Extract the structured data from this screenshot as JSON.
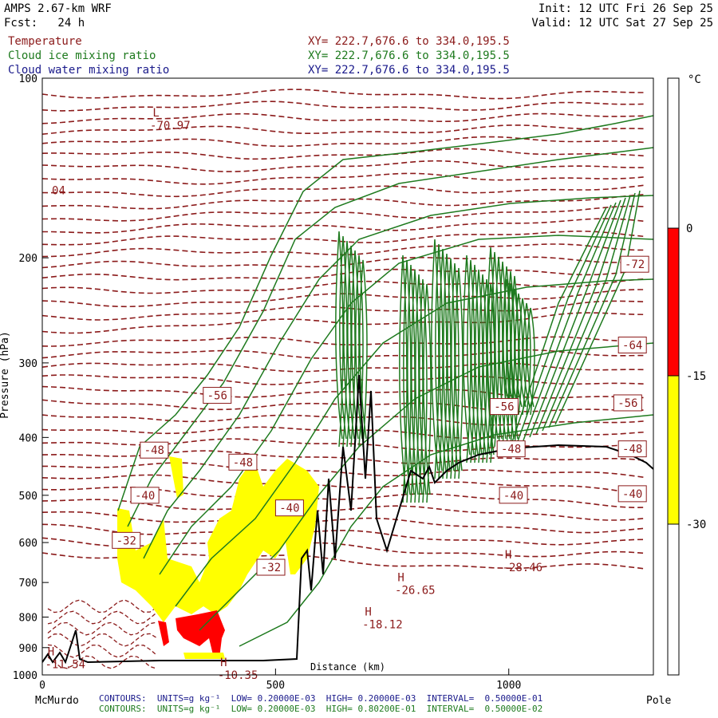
{
  "header": {
    "model": "AMPS 2.67-km WRF",
    "fcst": "Fcst:   24 h",
    "init": "Init: 12 UTC Fri 26 Sep 25",
    "valid": "Valid: 12 UTC Sat 27 Sep 25"
  },
  "fields": [
    {
      "name": "Temperature",
      "xy": "XY= 222.7,676.6 to 334.0,195.5",
      "color": "#8b1a1a"
    },
    {
      "name": "Cloud ice mixing ratio",
      "xy": "XY= 222.7,676.6 to 334.0,195.5",
      "color": "#1e7a1e"
    },
    {
      "name": "Cloud water mixing ratio",
      "xy": "XY= 222.7,676.6 to 334.0,195.5",
      "color": "#1a1a8b"
    }
  ],
  "footer": {
    "left_label": "McMurdo",
    "right_label": "Pole",
    "contours_1": "CONTOURS:  UNITS=g kg⁻¹  LOW= 0.20000E-03  HIGH= 0.20000E-03  INTERVAL=  0.50000E-01",
    "contours_2": "CONTOURS:  UNITS=g kg⁻¹  LOW= 0.20000E-03  HIGH= 0.80200E-01  INTERVAL=  0.50000E-02"
  },
  "chart_data": {
    "type": "contour",
    "title": "",
    "xlabel": "Distance (km)",
    "ylabel": "Pressure (hPa)",
    "xlim": [
      0,
      1310
    ],
    "ylim": [
      1000,
      100
    ],
    "y_scale": "log",
    "xticks": [
      0,
      500,
      1000
    ],
    "yticks": [
      100,
      200,
      300,
      400,
      500,
      600,
      700,
      800,
      900,
      1000
    ],
    "temperature_labels": [
      {
        "text": "-72",
        "x": 1270,
        "p": 205
      },
      {
        "text": "-64",
        "x": 1265,
        "p": 280
      },
      {
        "text": "-56",
        "x": 375,
        "p": 340
      },
      {
        "text": "-56",
        "x": 990,
        "p": 355
      },
      {
        "text": "-56",
        "x": 1255,
        "p": 350
      },
      {
        "text": "-48",
        "x": 240,
        "p": 420
      },
      {
        "text": "-48",
        "x": 430,
        "p": 440
      },
      {
        "text": "-48",
        "x": 1005,
        "p": 418
      },
      {
        "text": "-48",
        "x": 1265,
        "p": 418
      },
      {
        "text": "-40",
        "x": 220,
        "p": 500
      },
      {
        "text": "-40",
        "x": 530,
        "p": 525
      },
      {
        "text": "-40",
        "x": 1010,
        "p": 500
      },
      {
        "text": "-40",
        "x": 1265,
        "p": 497
      },
      {
        "text": "-32",
        "x": 180,
        "p": 595
      },
      {
        "text": "-32",
        "x": 490,
        "p": 660
      },
      {
        "text": "04",
        "x": 35,
        "p": 154
      }
    ],
    "extrema": [
      {
        "kind": "L",
        "text": "-70.97",
        "x": 305,
        "p": 118
      },
      {
        "kind": "H",
        "text": "-28.46",
        "x": 1060,
        "p": 650
      },
      {
        "kind": "H",
        "text": "-26.65",
        "x": 830,
        "p": 710
      },
      {
        "kind": "H",
        "text": "-18.12",
        "x": 760,
        "p": 810
      },
      {
        "kind": "H",
        "text": "-10.35",
        "x": 450,
        "p": 985
      },
      {
        "kind": "H",
        "text": "-11.54",
        "x": 80,
        "p": 945
      }
    ],
    "colorbar": {
      "unit": "°C",
      "levels": [
        "0",
        "-15",
        "-30"
      ],
      "bands": [
        {
          "from": "above 0",
          "color": "#ffffff"
        },
        {
          "from": "0 to -15",
          "color": "#ff0000"
        },
        {
          "from": "-15 to -30",
          "color": "#ffff00"
        },
        {
          "from": "below -30",
          "color": "#ffffff"
        }
      ]
    },
    "colors": {
      "temperature": "#8b1a1a",
      "cloud_ice": "#1e7a1e",
      "terrain": "#000000",
      "warm_fill": "#ff0000",
      "mid_fill": "#ffff00"
    }
  }
}
